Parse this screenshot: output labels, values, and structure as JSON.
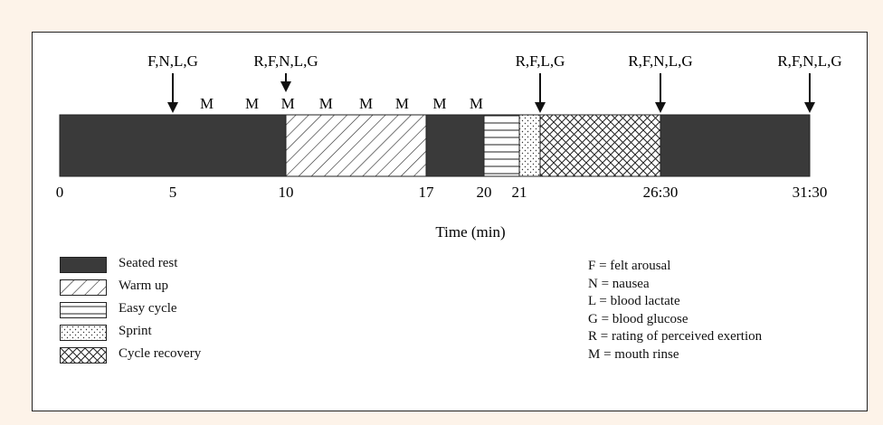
{
  "diagram": {
    "timeline": {
      "start_min": 0,
      "end_min": 31.5,
      "segments": [
        {
          "phase": "Seated rest",
          "start": 0,
          "end": 10
        },
        {
          "phase": "Warm up",
          "start": 10,
          "end": 17
        },
        {
          "phase": "Seated rest",
          "start": 17,
          "end": 20
        },
        {
          "phase": "Easy cycle",
          "start": 20,
          "end": 21
        },
        {
          "phase": "Sprint",
          "start": 21,
          "end": 21.5
        },
        {
          "phase": "Cycle recovery",
          "start": 21.5,
          "end": 26.5
        },
        {
          "phase": "Seated rest",
          "start": 26.5,
          "end": 31.5
        }
      ],
      "tick_labels": [
        {
          "text": "0",
          "value": 0
        },
        {
          "text": "5",
          "value": 5
        },
        {
          "text": "10",
          "value": 10
        },
        {
          "text": "17",
          "value": 17
        },
        {
          "text": "20",
          "value": 20
        },
        {
          "text": "21",
          "value": 21
        },
        {
          "text": "26:30",
          "value": 26.5
        },
        {
          "text": "31:30",
          "value": 31.5
        }
      ],
      "axis_label": "Time (min)",
      "measurements": [
        {
          "text": "F,N,L,G",
          "at": 5
        },
        {
          "text": "R,F,N,L,G",
          "at": 10
        },
        {
          "text": "R,F,L,G",
          "at": 21.5
        },
        {
          "text": "R,F,N,L,G",
          "at": 26.5
        },
        {
          "text": "R,F,N,L,G",
          "at": 31.5
        }
      ],
      "mouth_rinse_marker": "M",
      "mouth_rinse_times": [
        6.5,
        8.5,
        10.1,
        12,
        14,
        15.8,
        17.7,
        19.6
      ]
    },
    "legend": {
      "phases": [
        {
          "label": "Seated rest",
          "pattern": "solid"
        },
        {
          "label": "Warm up",
          "pattern": "diagonal"
        },
        {
          "label": "Easy cycle",
          "pattern": "horizontal"
        },
        {
          "label": "Sprint",
          "pattern": "dots"
        },
        {
          "label": "Cycle recovery",
          "pattern": "crosshatch"
        }
      ],
      "abbreviations": [
        "F = felt arousal",
        "N = nausea",
        "L = blood lactate",
        "G = blood glucose",
        "R = rating of perceived exertion",
        "M = mouth rinse"
      ]
    },
    "colors": {
      "background": "#fdf3e9",
      "dark_fill": "#3a3a3a",
      "stroke": "#222222"
    }
  }
}
